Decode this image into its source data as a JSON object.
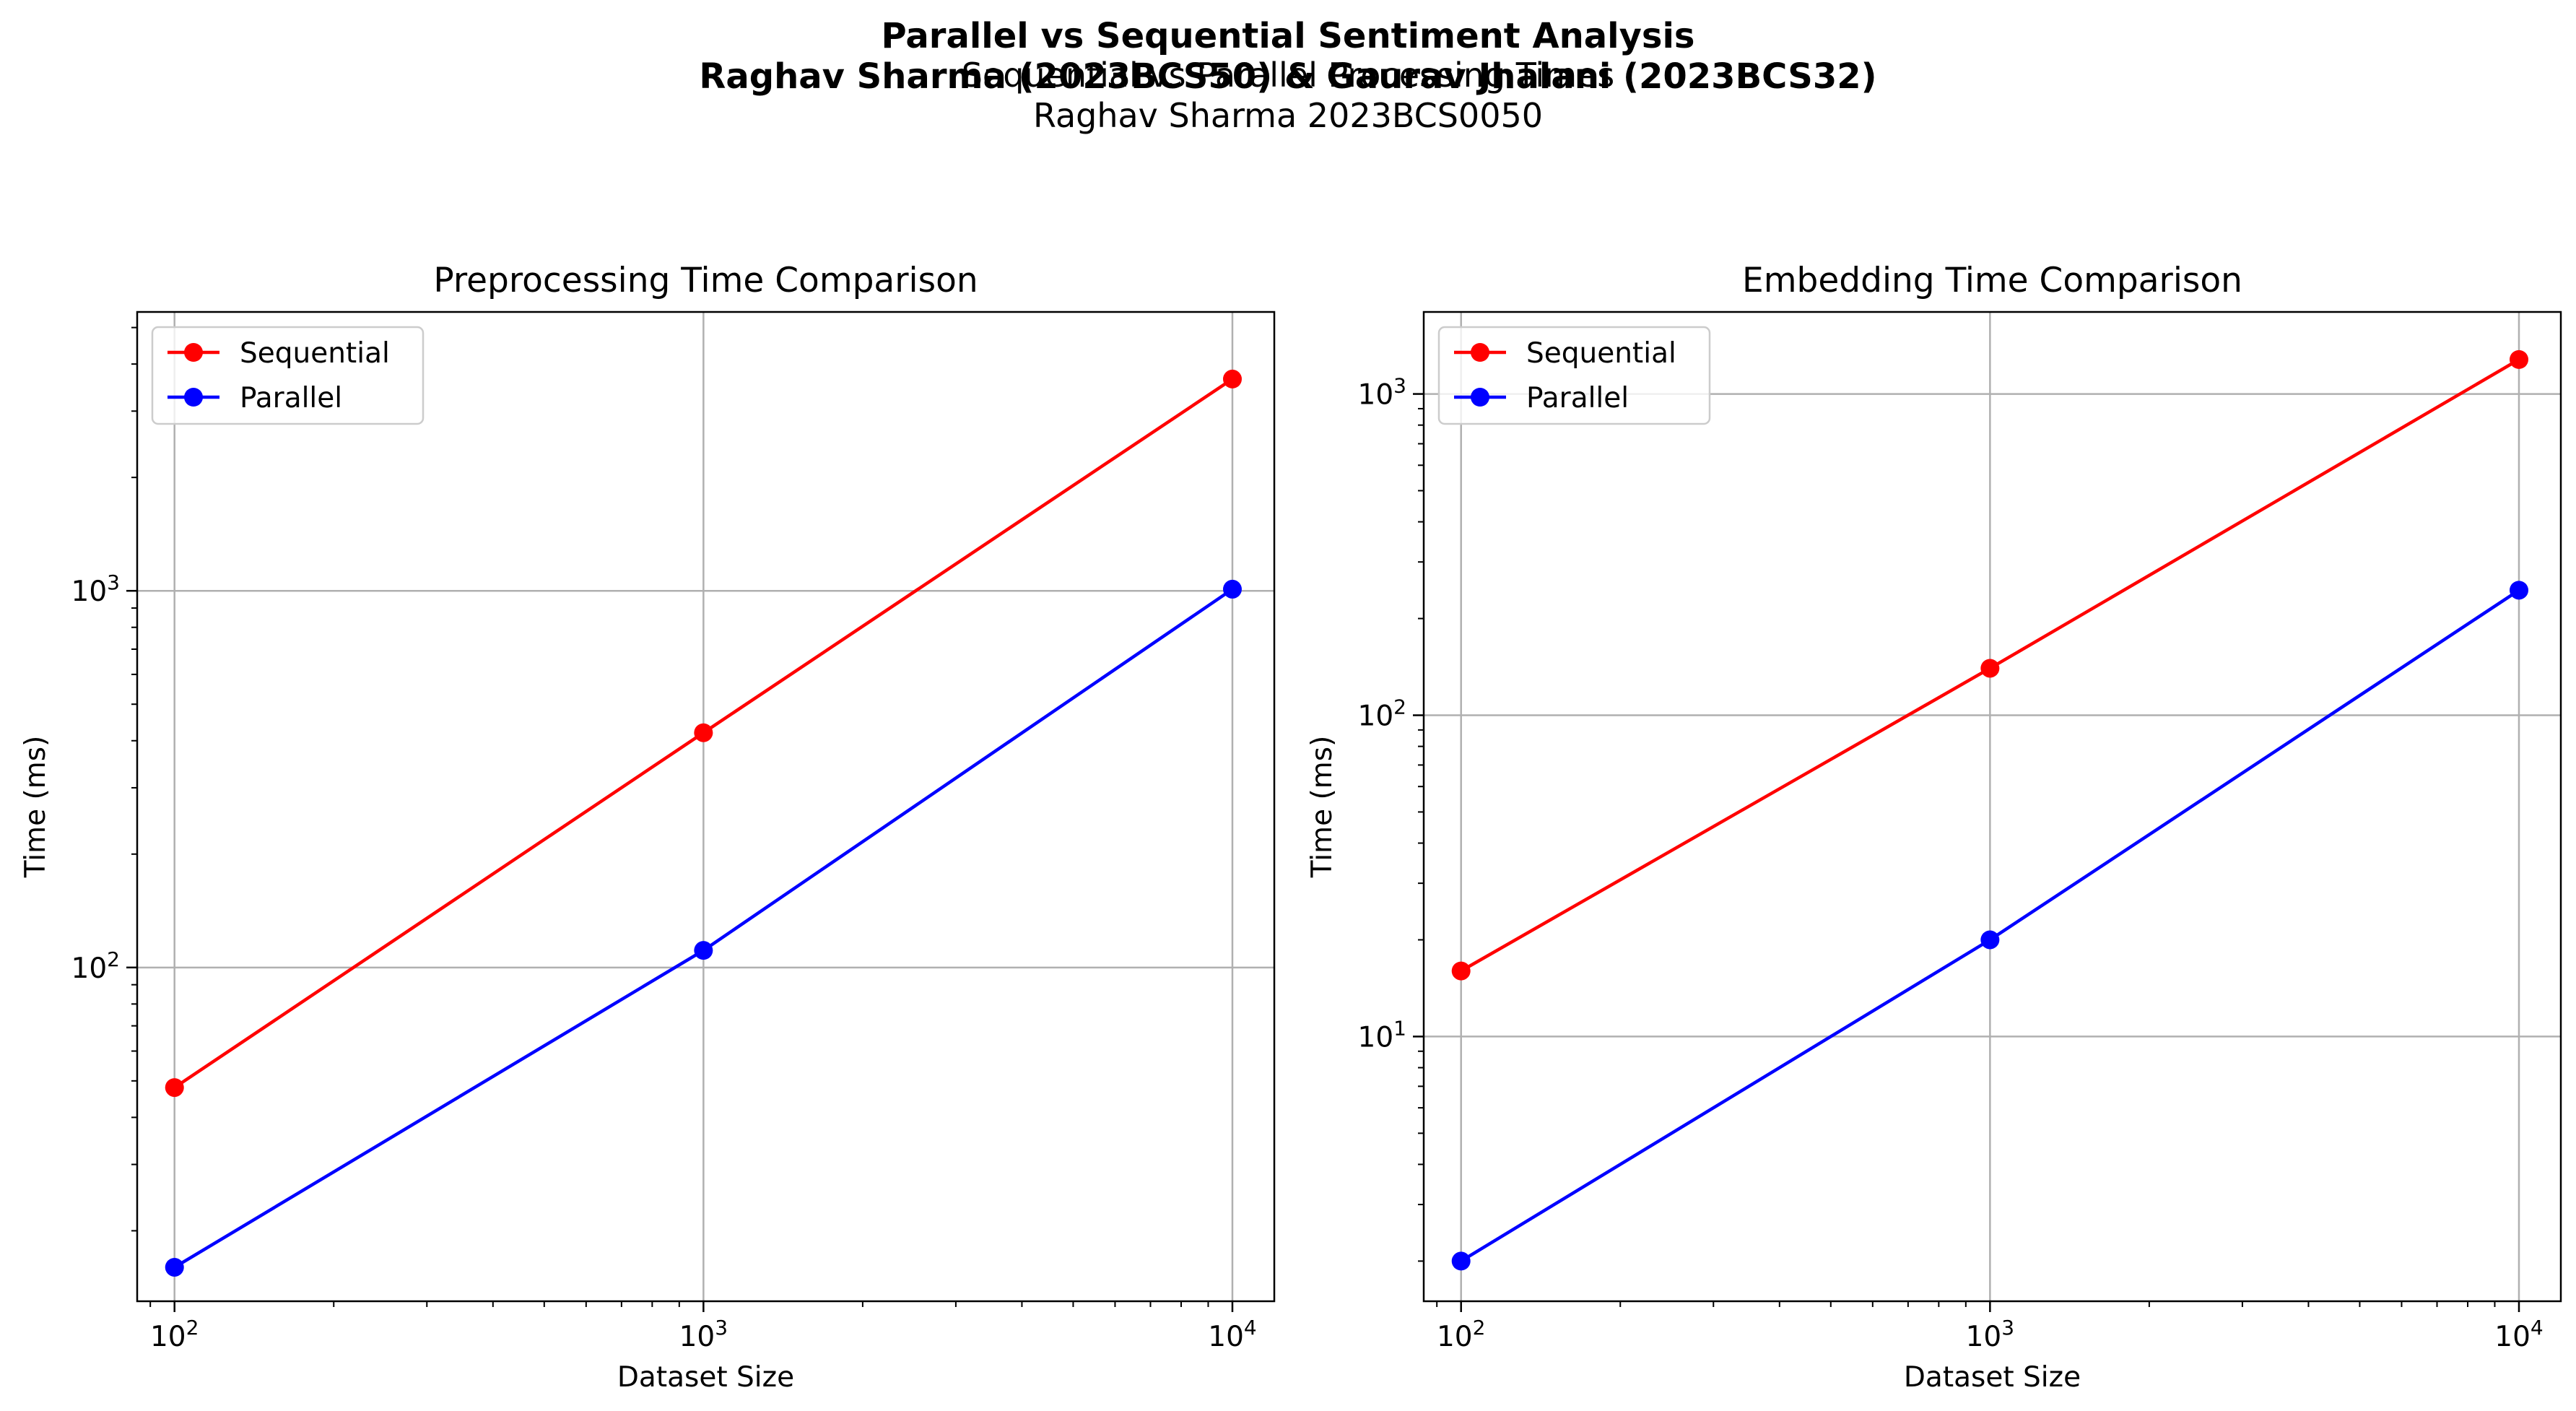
{
  "figure": {
    "suptitle_line1": "Parallel vs Sequential Sentiment Analysis",
    "suptitle_line2": "Raghav Sharma (2023BCS50) & Gaurav Jhalani (2023BCS32)",
    "overlap_title_line1": "Sequential vs Parallel Processing Times",
    "overlap_title_line2": "Raghav Sharma 2023BCS0050"
  },
  "colors": {
    "sequential": "#ff0000",
    "parallel": "#0000ff",
    "grid": "#b0b0b0",
    "axes": "#000000"
  },
  "chart_data": [
    {
      "type": "line",
      "title": "Preprocessing Time Comparison",
      "xlabel": "Dataset Size",
      "ylabel": "Time (ms)",
      "xscale": "log",
      "yscale": "log",
      "xlim": [
        85,
        12000
      ],
      "ylim": [
        13,
        5500
      ],
      "xticks": [
        100,
        1000,
        10000
      ],
      "yticks": [
        100,
        1000
      ],
      "grid": true,
      "legend_position": "upper-left",
      "x": [
        100,
        1000,
        10000
      ],
      "series": [
        {
          "name": "Sequential",
          "values": [
            48,
            420,
            3650
          ]
        },
        {
          "name": "Parallel",
          "values": [
            16,
            111,
            1010
          ]
        }
      ]
    },
    {
      "type": "line",
      "title": "Embedding Time Comparison",
      "xlabel": "Dataset Size",
      "ylabel": "Time (ms)",
      "xscale": "log",
      "yscale": "log",
      "xlim": [
        85,
        12000
      ],
      "ylim": [
        1.5,
        1800
      ],
      "xticks": [
        100,
        1000,
        10000
      ],
      "yticks": [
        10,
        100,
        1000
      ],
      "grid": true,
      "legend_position": "upper-left",
      "x": [
        100,
        1000,
        10000
      ],
      "series": [
        {
          "name": "Sequential",
          "values": [
            16,
            140,
            1280
          ]
        },
        {
          "name": "Parallel",
          "values": [
            2,
            20,
            245
          ]
        }
      ]
    }
  ]
}
